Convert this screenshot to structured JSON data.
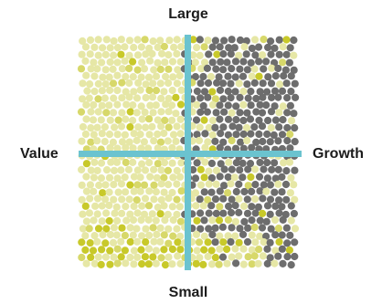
{
  "labels": {
    "top": "Large",
    "bottom": "Small",
    "left": "Value",
    "right": "Growth"
  },
  "colors": {
    "axis": "#6bc3cf",
    "dot_light": "#e6e7a6",
    "dot_mid": "#d7d86a",
    "dot_strong": "#c8c92a",
    "dot_gray": "#6d6d6d",
    "background": "#ffffff"
  }
}
